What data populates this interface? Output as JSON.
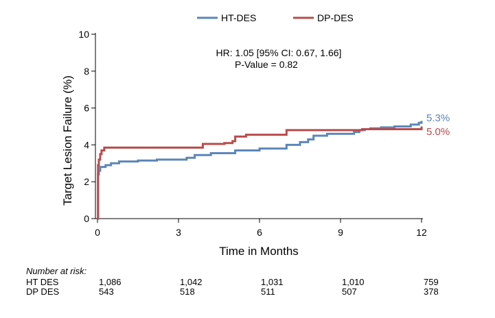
{
  "chart_data": {
    "type": "line",
    "step": true,
    "legend_position": "top",
    "grid": false,
    "title": "",
    "xlabel": "Time in Months",
    "ylabel": "Target Lesion Failure (%)",
    "xlim": [
      0,
      12
    ],
    "ylim": [
      0,
      10
    ],
    "xticks": [
      0,
      3,
      6,
      9,
      12
    ],
    "yticks": [
      0,
      2,
      4,
      6,
      8,
      10
    ],
    "annotation": [
      "HR: 1.05 [95% CI: 0.67, 1.66]",
      "P-Value = 0.82"
    ],
    "series": [
      {
        "name": "HT-DES",
        "color": "#5b86b8",
        "end_label": "5.3%",
        "x": [
          0,
          0.02,
          0.05,
          0.1,
          0.2,
          0.3,
          0.5,
          0.8,
          1.5,
          2.2,
          3.3,
          3.6,
          4.2,
          5.1,
          6.0,
          7.0,
          7.5,
          7.8,
          8.0,
          8.5,
          9.5,
          9.7,
          9.9,
          10.1,
          10.5,
          11.0,
          11.6,
          11.9,
          12.0
        ],
        "y": [
          0,
          2.4,
          2.6,
          2.8,
          2.8,
          2.9,
          3.0,
          3.1,
          3.15,
          3.2,
          3.3,
          3.45,
          3.55,
          3.7,
          3.8,
          4.0,
          4.15,
          4.3,
          4.5,
          4.6,
          4.7,
          4.8,
          4.85,
          4.9,
          4.95,
          5.0,
          5.1,
          5.2,
          5.3
        ]
      },
      {
        "name": "DP-DES",
        "color": "#b94b4b",
        "end_label": "5.0%",
        "x": [
          0,
          0.02,
          0.05,
          0.1,
          0.15,
          0.25,
          3.9,
          4.7,
          5.0,
          5.1,
          5.5,
          7.0,
          8.0,
          9.8,
          11.5,
          12.0
        ],
        "y": [
          0,
          2.9,
          3.2,
          3.5,
          3.7,
          3.85,
          4.05,
          4.1,
          4.2,
          4.45,
          4.55,
          4.8,
          4.8,
          4.85,
          4.85,
          5.0
        ]
      }
    ]
  },
  "risk_table": {
    "title": "Number at risk:",
    "times": [
      0,
      3,
      6,
      9,
      12
    ],
    "rows": [
      {
        "label": "HT DES",
        "values": [
          "1,086",
          "1,042",
          "1,031",
          "1,010",
          "759"
        ]
      },
      {
        "label": "DP DES",
        "values": [
          "543",
          "518",
          "511",
          "507",
          "378"
        ]
      }
    ]
  }
}
